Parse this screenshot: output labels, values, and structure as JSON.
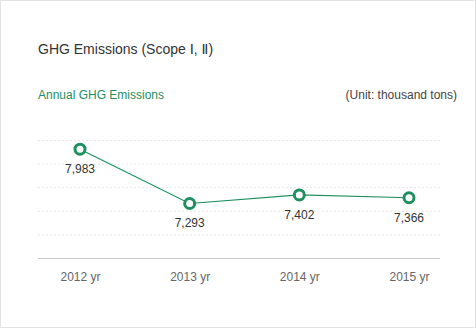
{
  "chart_data": {
    "type": "line",
    "title": "GHG Emissions (Scope Ⅰ, Ⅱ)",
    "subtitle": "Annual GHG Emissions",
    "annotation": "(Unit: thousand tons)",
    "categories": [
      "2012 yr",
      "2013 yr",
      "2014 yr",
      "2015 yr"
    ],
    "values": [
      7983,
      7293,
      7402,
      7366
    ],
    "value_labels": [
      "7,983",
      "7,293",
      "7,402",
      "7,366"
    ],
    "color": "#1e8f5e",
    "marker": "circle",
    "ylim": [
      6600,
      8100
    ],
    "yticks": [
      6600,
      6900,
      7200,
      7500,
      7800,
      8100
    ],
    "grid": true,
    "data_labels": true,
    "tick_labels": "x"
  }
}
